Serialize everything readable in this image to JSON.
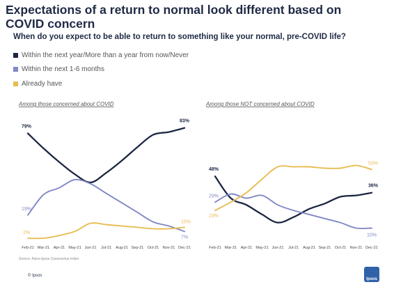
{
  "title": "Expectations of a return to normal look different based on COVID concern",
  "subtitle": "When do you expect to be able to return to something like your normal, pre-COVID life?",
  "legend": [
    {
      "label": "Within the next year/More than a year from now/Never",
      "color": "#1c2642"
    },
    {
      "label": "Within the next 1-6 months",
      "color": "#8188c6"
    },
    {
      "label": "Already have",
      "color": "#e8bd54"
    }
  ],
  "source": "Source: Axios-Ipsos Coronavirus Index",
  "brand": "© Ipsos",
  "logo_text": "Ipsos",
  "chart_data": [
    {
      "type": "line",
      "title": "Among those concerned about COVID",
      "x": [
        "Feb-21",
        "Mar-21",
        "Apr-21",
        "May-21",
        "Jun-21",
        "Jul-21",
        "Aug-21",
        "Sep-21",
        "Oct-21",
        "Nov-21",
        "Dec-21"
      ],
      "ylim": [
        0,
        90
      ],
      "series": [
        {
          "name": "Within the next year/More than a year from now/Never",
          "color": "#1c2642",
          "values": [
            79,
            68,
            58,
            49,
            43,
            50,
            59,
            69,
            78,
            80,
            83
          ],
          "labels": [
            {
              "index": 0,
              "text": "79%"
            },
            {
              "index": 10,
              "text": "83%"
            }
          ]
        },
        {
          "name": "Within the next 1-6 months",
          "color": "#8188c6",
          "values": [
            19,
            34,
            39,
            45,
            42,
            35,
            28,
            21,
            14,
            11,
            7
          ],
          "labels": [
            {
              "index": 0,
              "text": "19%"
            },
            {
              "index": 10,
              "text": "7%"
            }
          ]
        },
        {
          "name": "Already have",
          "color": "#e8bd54",
          "values": [
            2,
            2,
            4,
            7,
            13,
            12,
            11,
            10,
            9,
            9,
            10
          ],
          "labels": [
            {
              "index": 0,
              "text": "2%"
            },
            {
              "index": 10,
              "text": "10%"
            }
          ]
        }
      ]
    },
    {
      "type": "line",
      "title": "Among those NOT concerned about COVID",
      "x": [
        "Feb-21",
        "Mar-21",
        "Apr-21",
        "May-21",
        "Jun-21",
        "Jul-21",
        "Aug-21",
        "Sep-21",
        "Oct-21",
        "Nov-21",
        "Dec-21"
      ],
      "ylim": [
        0,
        65
      ],
      "series": [
        {
          "name": "Within the next year/More than a year from now/Never",
          "color": "#1c2642",
          "values": [
            48,
            32,
            27,
            20,
            14,
            18,
            24,
            28,
            33,
            34,
            36
          ],
          "labels": [
            {
              "index": 0,
              "text": "48%"
            },
            {
              "index": 10,
              "text": "36%"
            }
          ]
        },
        {
          "name": "Within the next 1-6 months",
          "color": "#8188c6",
          "values": [
            29,
            35,
            32,
            34,
            27,
            23,
            20,
            17,
            14,
            10,
            10
          ],
          "labels": [
            {
              "index": 0,
              "text": "29%"
            },
            {
              "index": 10,
              "text": "10%"
            }
          ]
        },
        {
          "name": "Already have",
          "color": "#e8bd54",
          "values": [
            23,
            29,
            36,
            46,
            55,
            55,
            55,
            54,
            54,
            56,
            53
          ],
          "labels": [
            {
              "index": 0,
              "text": "23%"
            },
            {
              "index": 10,
              "text": "53%"
            }
          ]
        }
      ]
    }
  ]
}
